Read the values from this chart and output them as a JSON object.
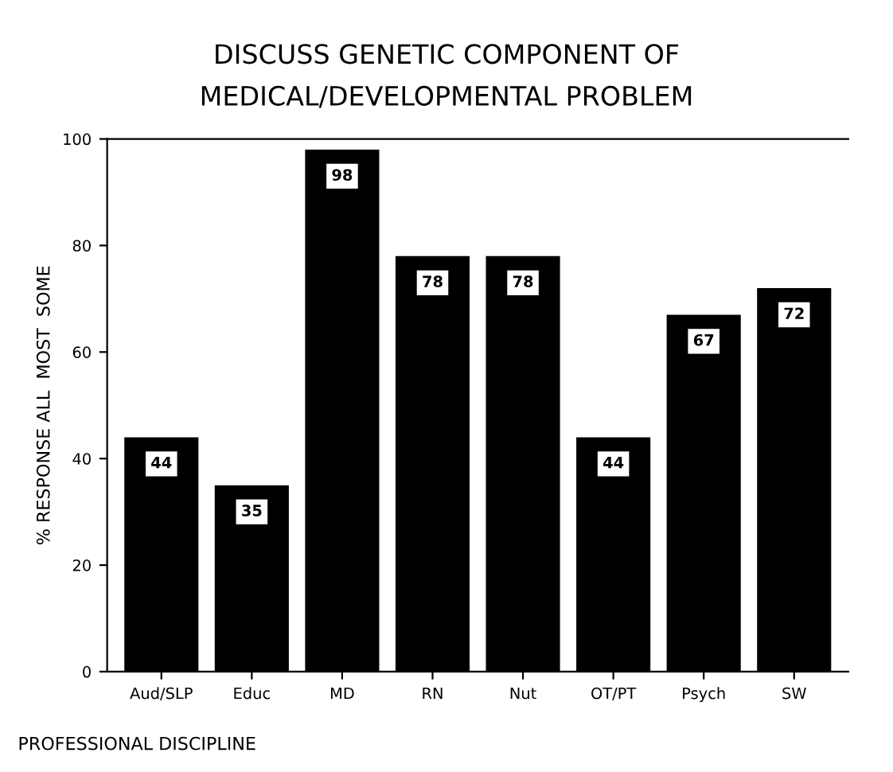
{
  "chart_data": {
    "type": "bar",
    "title": "DISCUSS GENETIC COMPONENT OF\nMEDICAL/DEVELOPMENTAL PROBLEM",
    "categories": [
      "Aud/SLP",
      "Educ",
      "MD",
      "RN",
      "Nut",
      "OT/PT",
      "Psych",
      "SW"
    ],
    "values": [
      44,
      35,
      98,
      78,
      78,
      44,
      67,
      72
    ],
    "color": "#000000",
    "xlabel": "PROFESSIONAL DISCIPLINE",
    "ylabel": "% RESPONSE ALL  MOST  SOME",
    "ylim": [
      0,
      100
    ],
    "yticks": [
      0,
      20,
      40,
      60,
      80,
      100
    ],
    "data_labels": true,
    "grid": false
  }
}
